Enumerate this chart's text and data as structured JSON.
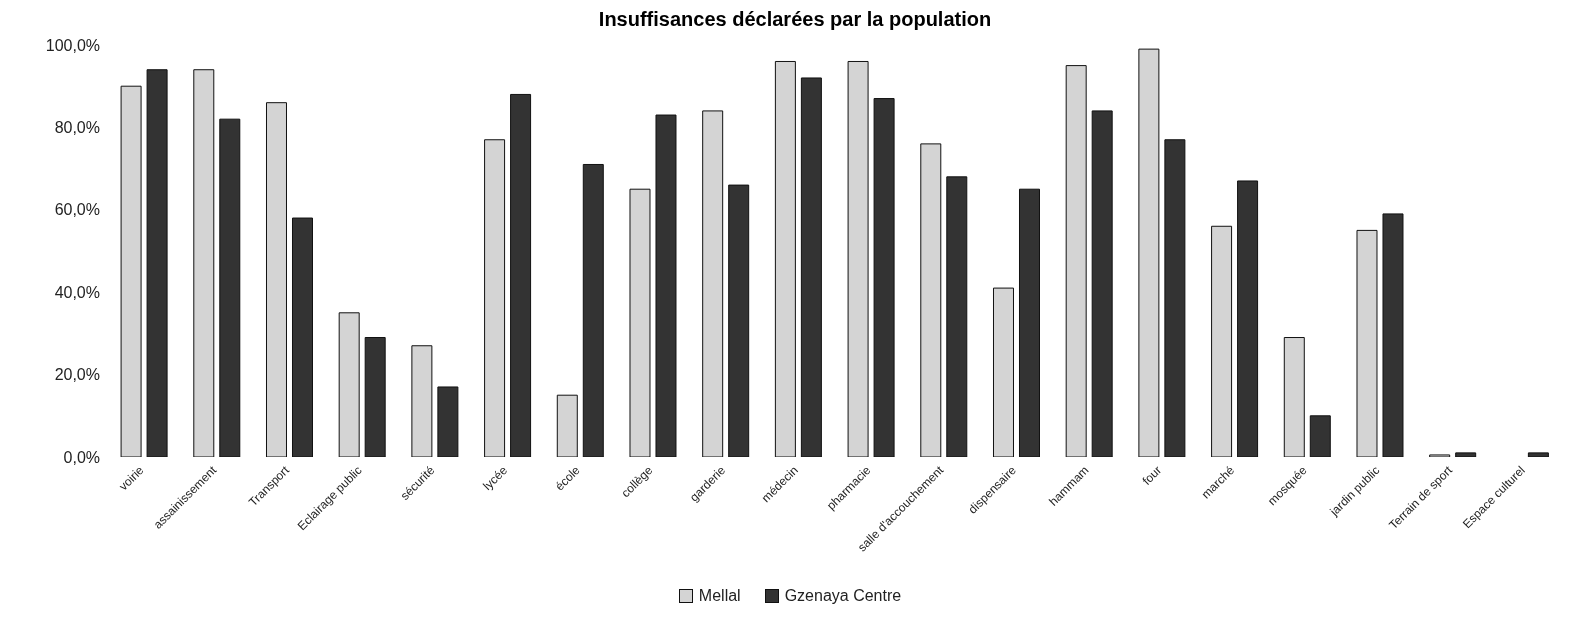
{
  "chart_data": {
    "type": "bar",
    "title": "Insuffisances déclarées par la population",
    "categories": [
      "voirie",
      "assainissement",
      "Transport",
      "Eclairage public",
      "sécurité",
      "lycée",
      "école",
      "collège",
      "garderie",
      "médecin",
      "pharmacie",
      "salle d'accouchement",
      "dispensaire",
      "hammam",
      "four",
      "marché",
      "mosquée",
      "jardin public",
      "Terrain de sport",
      "Espace culturel"
    ],
    "series": [
      {
        "name": "Mellal",
        "color": "#d4d4d4",
        "values": [
          90,
          94,
          86,
          35,
          27,
          77,
          15,
          65,
          84,
          96,
          96,
          76,
          41,
          95,
          99,
          56,
          29,
          55,
          0.5,
          null
        ]
      },
      {
        "name": "Gzenaya Centre",
        "color": "#333333",
        "values": [
          94,
          82,
          58,
          29,
          17,
          88,
          71,
          83,
          66,
          92,
          87,
          68,
          65,
          84,
          77,
          67,
          10,
          59,
          1,
          1
        ]
      }
    ],
    "ylim": [
      0,
      100
    ],
    "yticks": [
      {
        "value": 0,
        "label": "0,0%"
      },
      {
        "value": 20,
        "label": "20,0%"
      },
      {
        "value": 40,
        "label": "40,0%"
      },
      {
        "value": 60,
        "label": "60,0%"
      },
      {
        "value": 80,
        "label": "80,0%"
      },
      {
        "value": 100,
        "label": "100,0%"
      }
    ],
    "grid": false,
    "legend": "bottom"
  }
}
